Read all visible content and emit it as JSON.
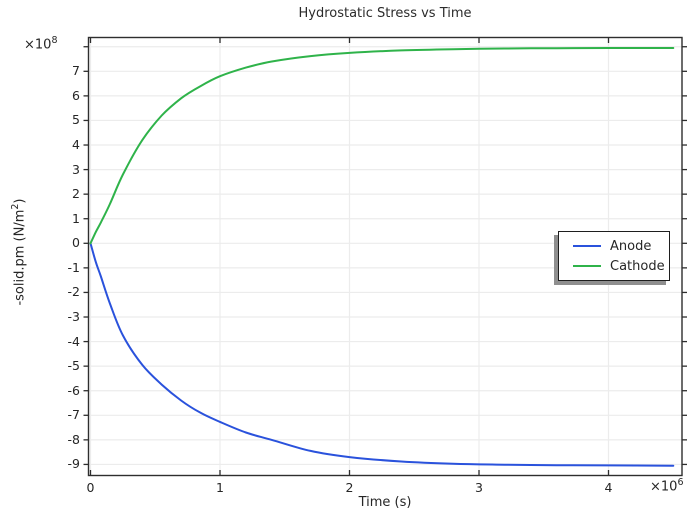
{
  "title": "Hydrostatic Stress vs Time",
  "colors": {
    "anode": "#2a52dc",
    "cathode": "#2fb34a",
    "grid": "#ececec",
    "axis": "#2e2e2e",
    "text": "#262626",
    "legend_shadow": "#8f8f8f"
  },
  "y_axis": {
    "multiplier_base": "×10",
    "multiplier_exp": "8",
    "label_pre": "-solid.pm (N/m",
    "label_sup": "2",
    "label_post": ")"
  },
  "x_axis": {
    "label": "Time (s)",
    "multiplier_base": "×10",
    "multiplier_exp": "6"
  },
  "legend": {
    "items": [
      {
        "label": "Anode",
        "color": "#2a52dc"
      },
      {
        "label": "Cathode",
        "color": "#2fb34a"
      }
    ]
  },
  "chart_data": {
    "type": "line",
    "title": "Hydrostatic Stress vs Time",
    "xlabel": "Time (s)",
    "ylabel": "-solid.pm (N/m^2)",
    "x_unit_multiplier": 1000000,
    "y_unit_multiplier": 100000000,
    "xlim": [
      -0.03,
      4.57
    ],
    "ylim": [
      -9.45,
      8.37
    ],
    "grid": true,
    "legend_position": "middle-right",
    "x_ticks": [
      {
        "v": 0,
        "label": "0"
      },
      {
        "v": 1,
        "label": "1"
      },
      {
        "v": 2,
        "label": "2"
      },
      {
        "v": 3,
        "label": "3"
      },
      {
        "v": 4,
        "label": "4"
      }
    ],
    "y_ticks": [
      {
        "v": 8,
        "label": ""
      },
      {
        "v": 7,
        "label": "7"
      },
      {
        "v": 6,
        "label": "6"
      },
      {
        "v": 5,
        "label": "5"
      },
      {
        "v": 4,
        "label": "4"
      },
      {
        "v": 3,
        "label": "3"
      },
      {
        "v": 2,
        "label": "2"
      },
      {
        "v": 1,
        "label": "1"
      },
      {
        "v": 0,
        "label": "0"
      },
      {
        "v": -1,
        "label": "-1"
      },
      {
        "v": -2,
        "label": "-2"
      },
      {
        "v": -3,
        "label": "-3"
      },
      {
        "v": -4,
        "label": "-4"
      },
      {
        "v": -5,
        "label": "-5"
      },
      {
        "v": -6,
        "label": "-6"
      },
      {
        "v": -7,
        "label": "-7"
      },
      {
        "v": -8,
        "label": "-8"
      },
      {
        "v": -9,
        "label": "-9"
      }
    ],
    "series": [
      {
        "name": "Anode",
        "color": "#2a52dc",
        "x": [
          0,
          0.04,
          0.08,
          0.15,
          0.25,
          0.4,
          0.55,
          0.7,
          0.85,
          1.0,
          1.2,
          1.4,
          1.7,
          2.0,
          2.4,
          2.8,
          3.2,
          3.6,
          4.0,
          4.5
        ],
        "y": [
          0,
          -0.75,
          -1.35,
          -2.45,
          -3.75,
          -4.95,
          -5.75,
          -6.4,
          -6.9,
          -7.27,
          -7.7,
          -8.0,
          -8.45,
          -8.7,
          -8.88,
          -8.97,
          -9.01,
          -9.03,
          -9.04,
          -9.05
        ]
      },
      {
        "name": "Cathode",
        "color": "#2fb34a",
        "x": [
          0,
          0.04,
          0.08,
          0.15,
          0.25,
          0.4,
          0.55,
          0.7,
          0.85,
          1.0,
          1.2,
          1.4,
          1.7,
          2.0,
          2.4,
          2.8,
          3.2,
          3.6,
          4.0,
          4.5
        ],
        "y": [
          0,
          0.45,
          0.85,
          1.6,
          2.8,
          4.2,
          5.2,
          5.9,
          6.4,
          6.8,
          7.15,
          7.4,
          7.62,
          7.75,
          7.85,
          7.9,
          7.93,
          7.94,
          7.95,
          7.95
        ]
      }
    ]
  }
}
